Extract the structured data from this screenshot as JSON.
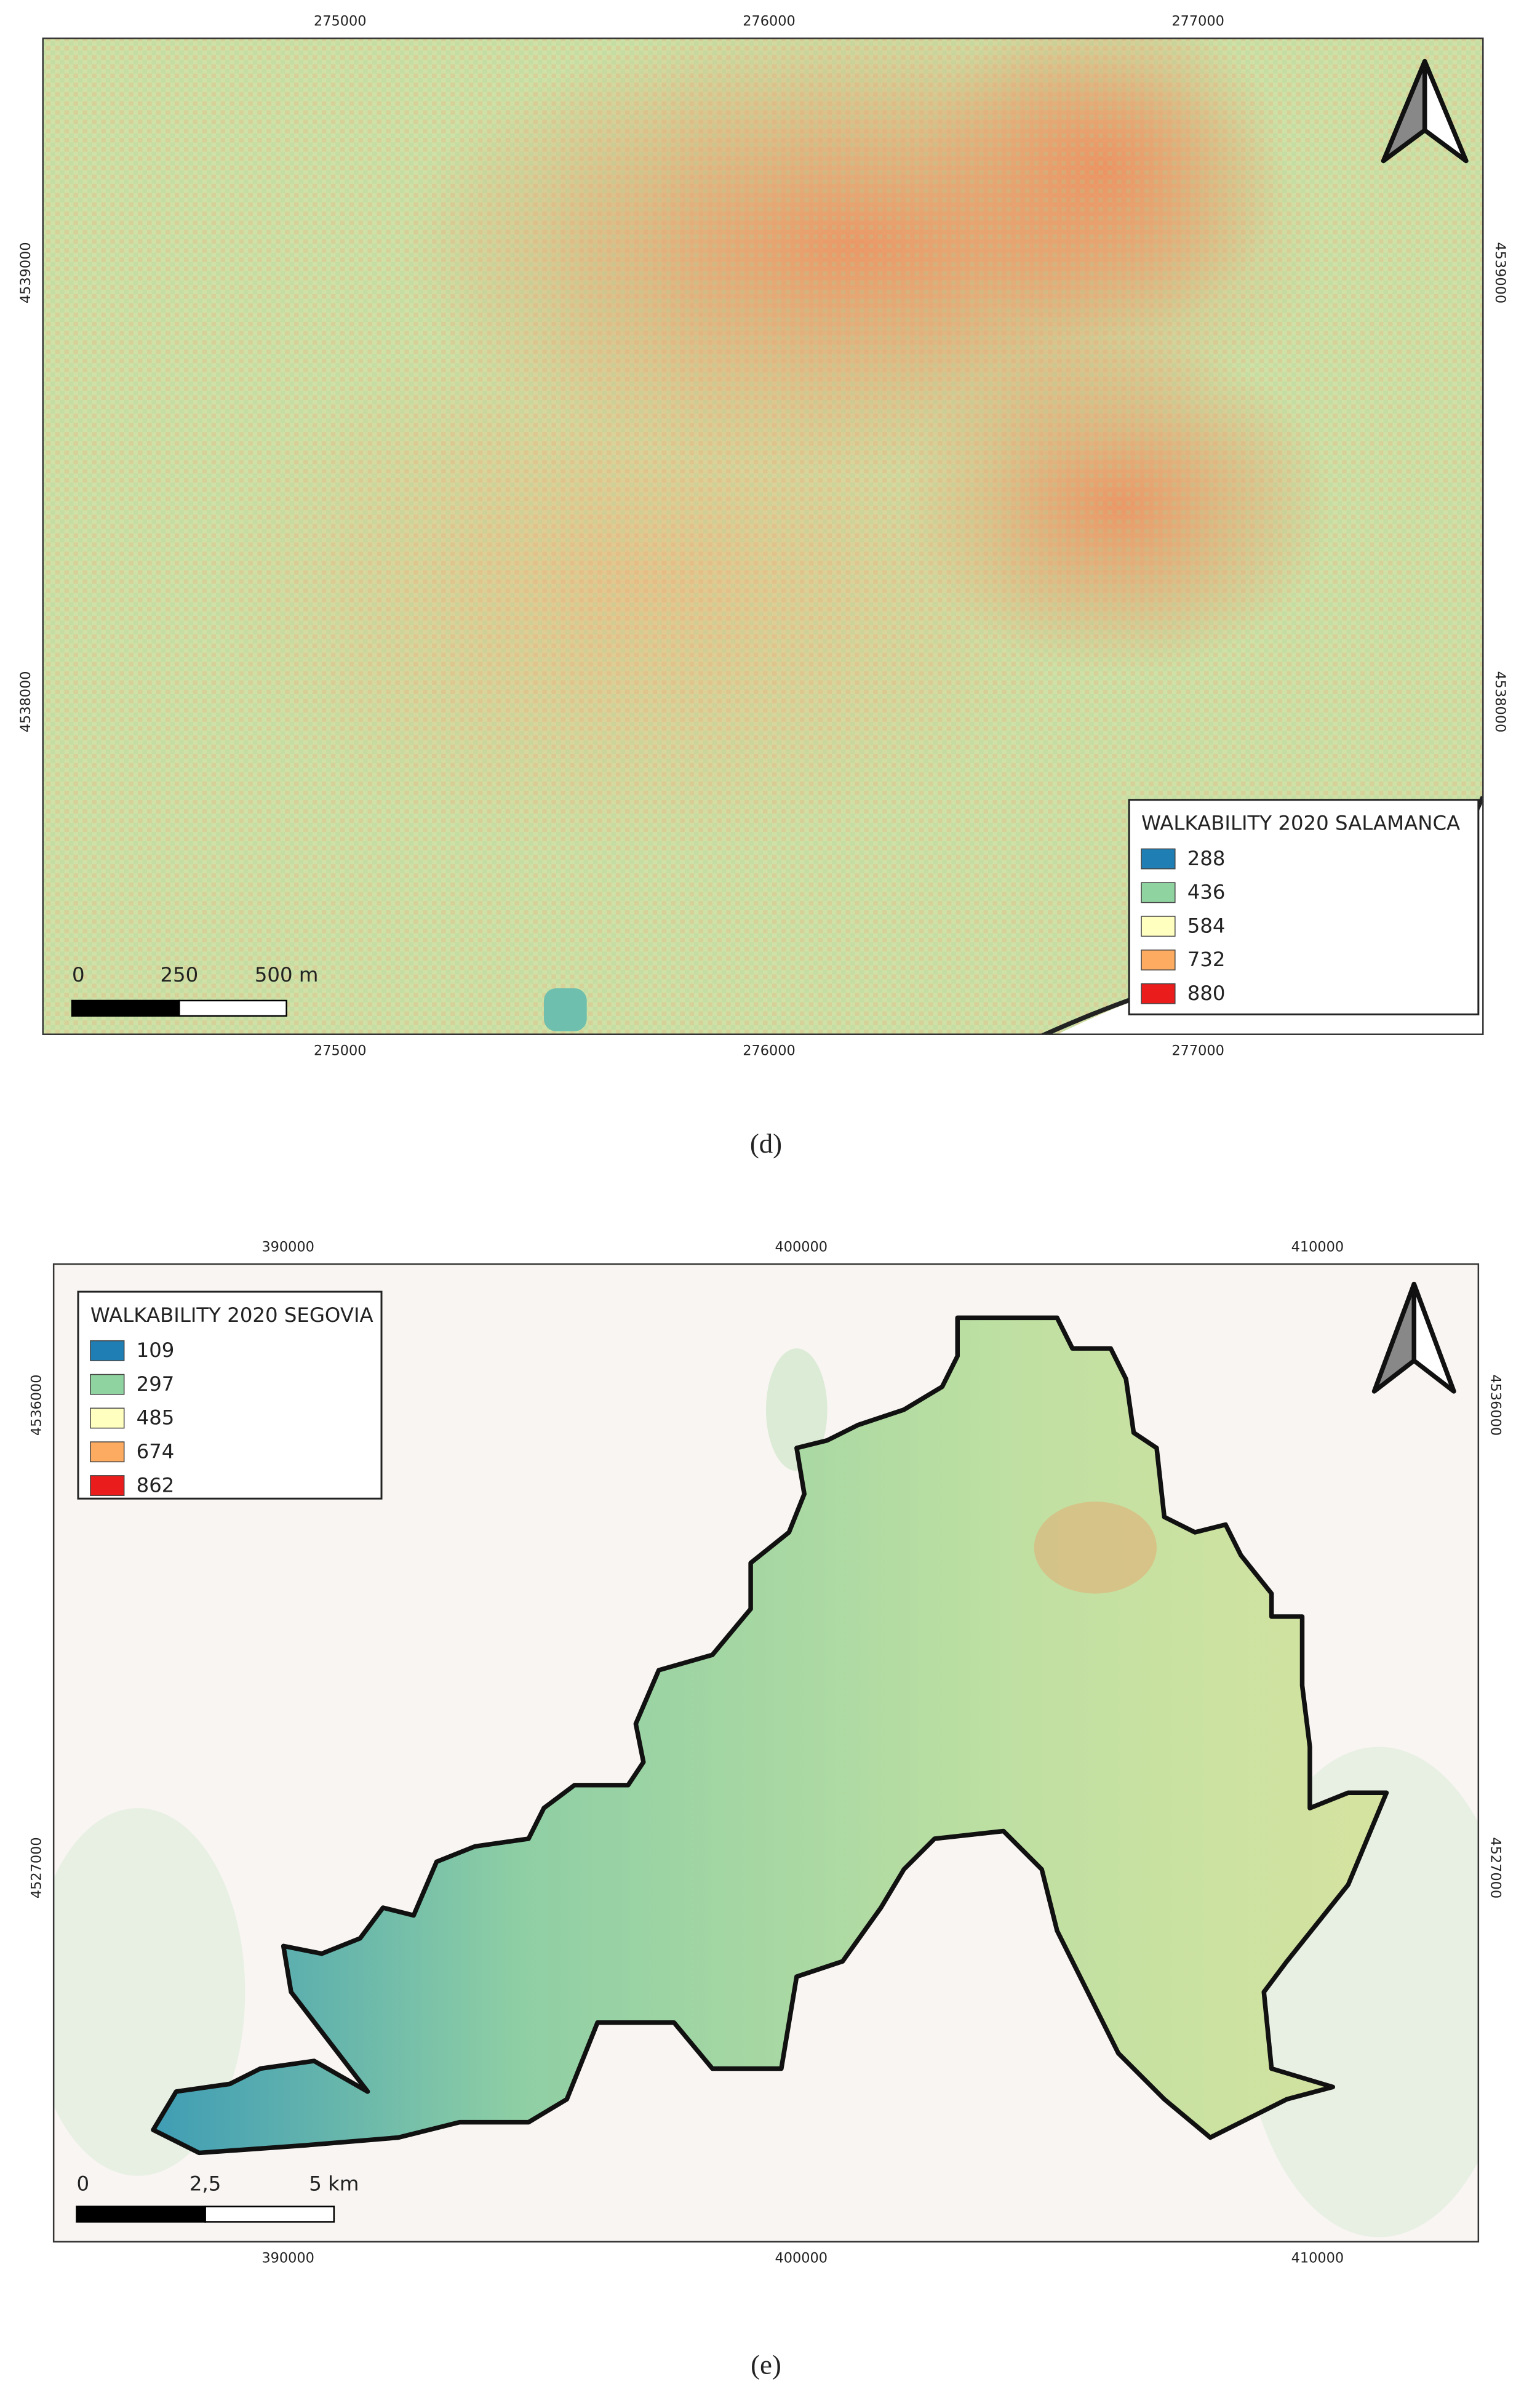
{
  "panels": [
    {
      "ticks_top": [
        275000,
        276000,
        277000
      ],
      "ticks_bottom": [
        275000,
        276000,
        277000
      ],
      "ticks_left": [
        4539000,
        4538000
      ],
      "ticks_right": [
        4539000,
        4538000
      ],
      "legend": {
        "title": "WALKABILITY 2020 SALAMANCA",
        "items": [
          {
            "label": 288,
            "color": "#1f7fb4"
          },
          {
            "label": 436,
            "color": "#8fd3a0"
          },
          {
            "label": 584,
            "color": "#ffffc0"
          },
          {
            "label": 732,
            "color": "#fdab60"
          },
          {
            "label": 880,
            "color": "#ea1c1c"
          }
        ]
      },
      "scale_bar": [
        "0",
        "250",
        "500 m"
      ],
      "caption": "(d)"
    },
    {
      "ticks_top": [
        390000,
        400000,
        410000
      ],
      "ticks_bottom": [
        390000,
        400000,
        410000
      ],
      "ticks_left": [
        4536000,
        4527000
      ],
      "ticks_right": [
        4536000,
        4527000
      ],
      "legend": {
        "title": "WALKABILITY 2020 SEGOVIA",
        "items": [
          {
            "label": 109,
            "color": "#1f7fb4"
          },
          {
            "label": 297,
            "color": "#8fd3a0"
          },
          {
            "label": 485,
            "color": "#ffffc0"
          },
          {
            "label": 674,
            "color": "#fdab60"
          },
          {
            "label": 862,
            "color": "#ea1c1c"
          }
        ]
      },
      "scale_bar": [
        "0",
        "2,5",
        "5 km"
      ],
      "caption": "(e)"
    }
  ]
}
